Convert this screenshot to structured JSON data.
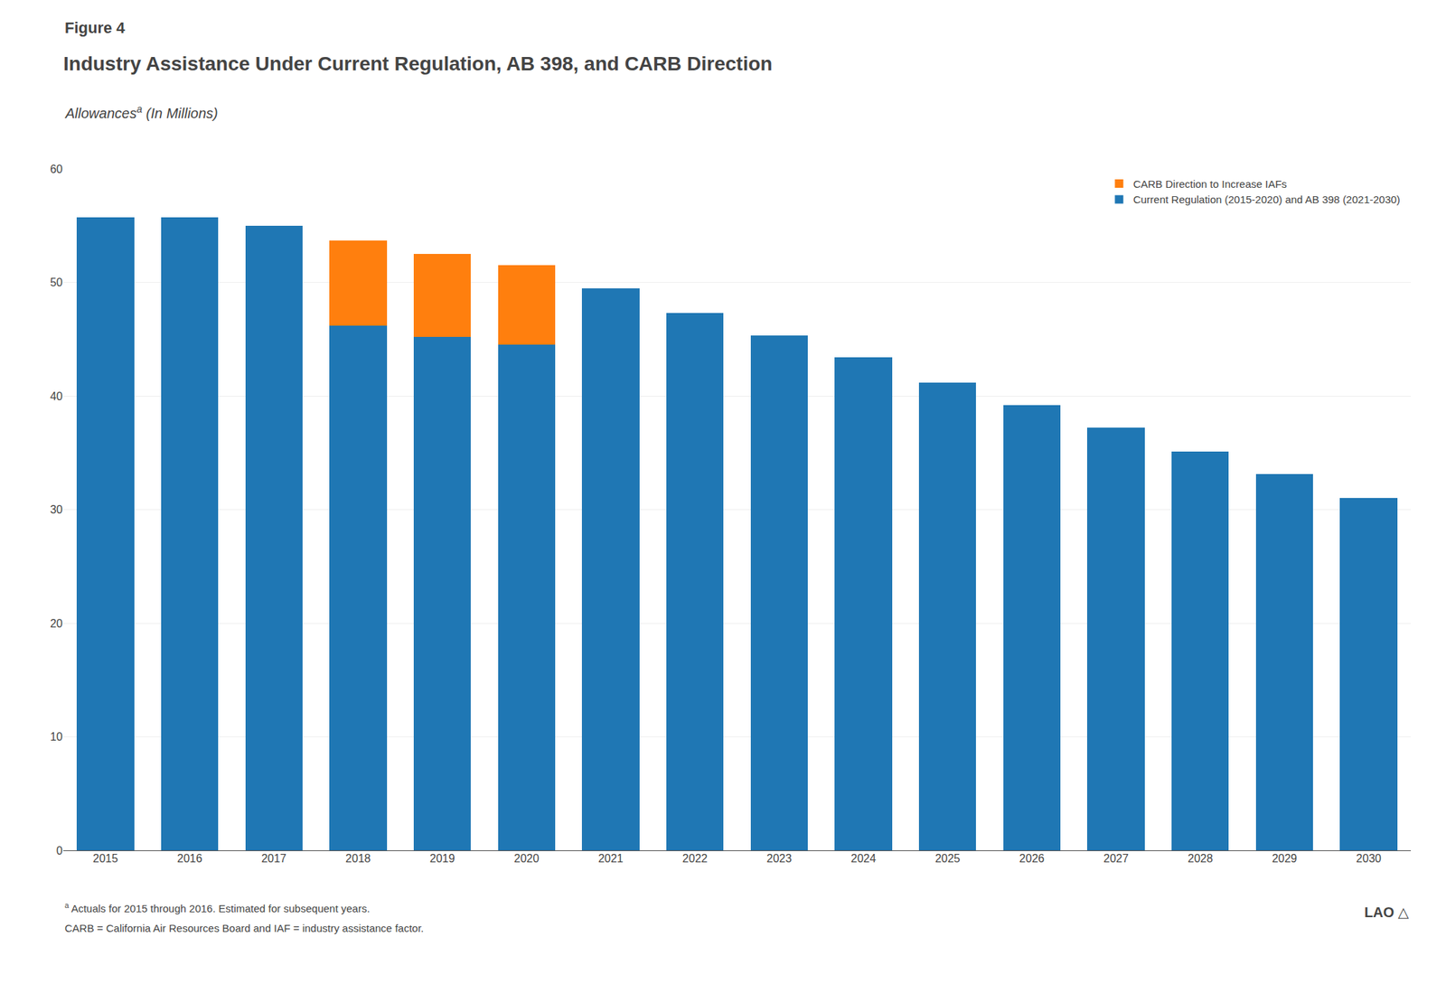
{
  "chart_data": {
    "type": "bar",
    "stacked": true,
    "figure_label": "Figure 4",
    "title": "Industry Assistance Under Current Regulation, AB 398, and CARB Direction",
    "subtitle": "Allowances",
    "subtitle_superscript": "a",
    "subtitle_rest": " (In Millions)",
    "categories": [
      "2015",
      "2016",
      "2017",
      "2018",
      "2019",
      "2020",
      "2021",
      "2022",
      "2023",
      "2024",
      "2025",
      "2026",
      "2027",
      "2028",
      "2029",
      "2030"
    ],
    "series": [
      {
        "name": "Current Regulation (2015-2020) and AB 398 (2021-2030)",
        "values": [
          55.7,
          55.7,
          55.0,
          46.2,
          45.2,
          44.5,
          49.5,
          47.3,
          45.3,
          43.4,
          41.2,
          39.2,
          37.2,
          35.1,
          33.1,
          31.0
        ]
      },
      {
        "name": "CARB Direction to Increase IAFs",
        "values": [
          0.0,
          0.0,
          0.0,
          7.5,
          7.3,
          7.0,
          0.0,
          0.0,
          0.0,
          0.0,
          0.0,
          0.0,
          0.0,
          0.0,
          0.0,
          0.0
        ]
      }
    ],
    "ylim": [
      0,
      60
    ],
    "yticks": [
      0,
      10,
      20,
      30,
      40,
      50,
      60
    ],
    "grid": true,
    "legend": "upper right",
    "footnote_marker": "a",
    "footnotes": [
      " Actuals for 2015 through 2016. Estimated for subsequent years.",
      "CARB = California Air Resources Board and IAF = industry assistance factor."
    ],
    "logo": "LAO",
    "logo_symbol": "△"
  }
}
